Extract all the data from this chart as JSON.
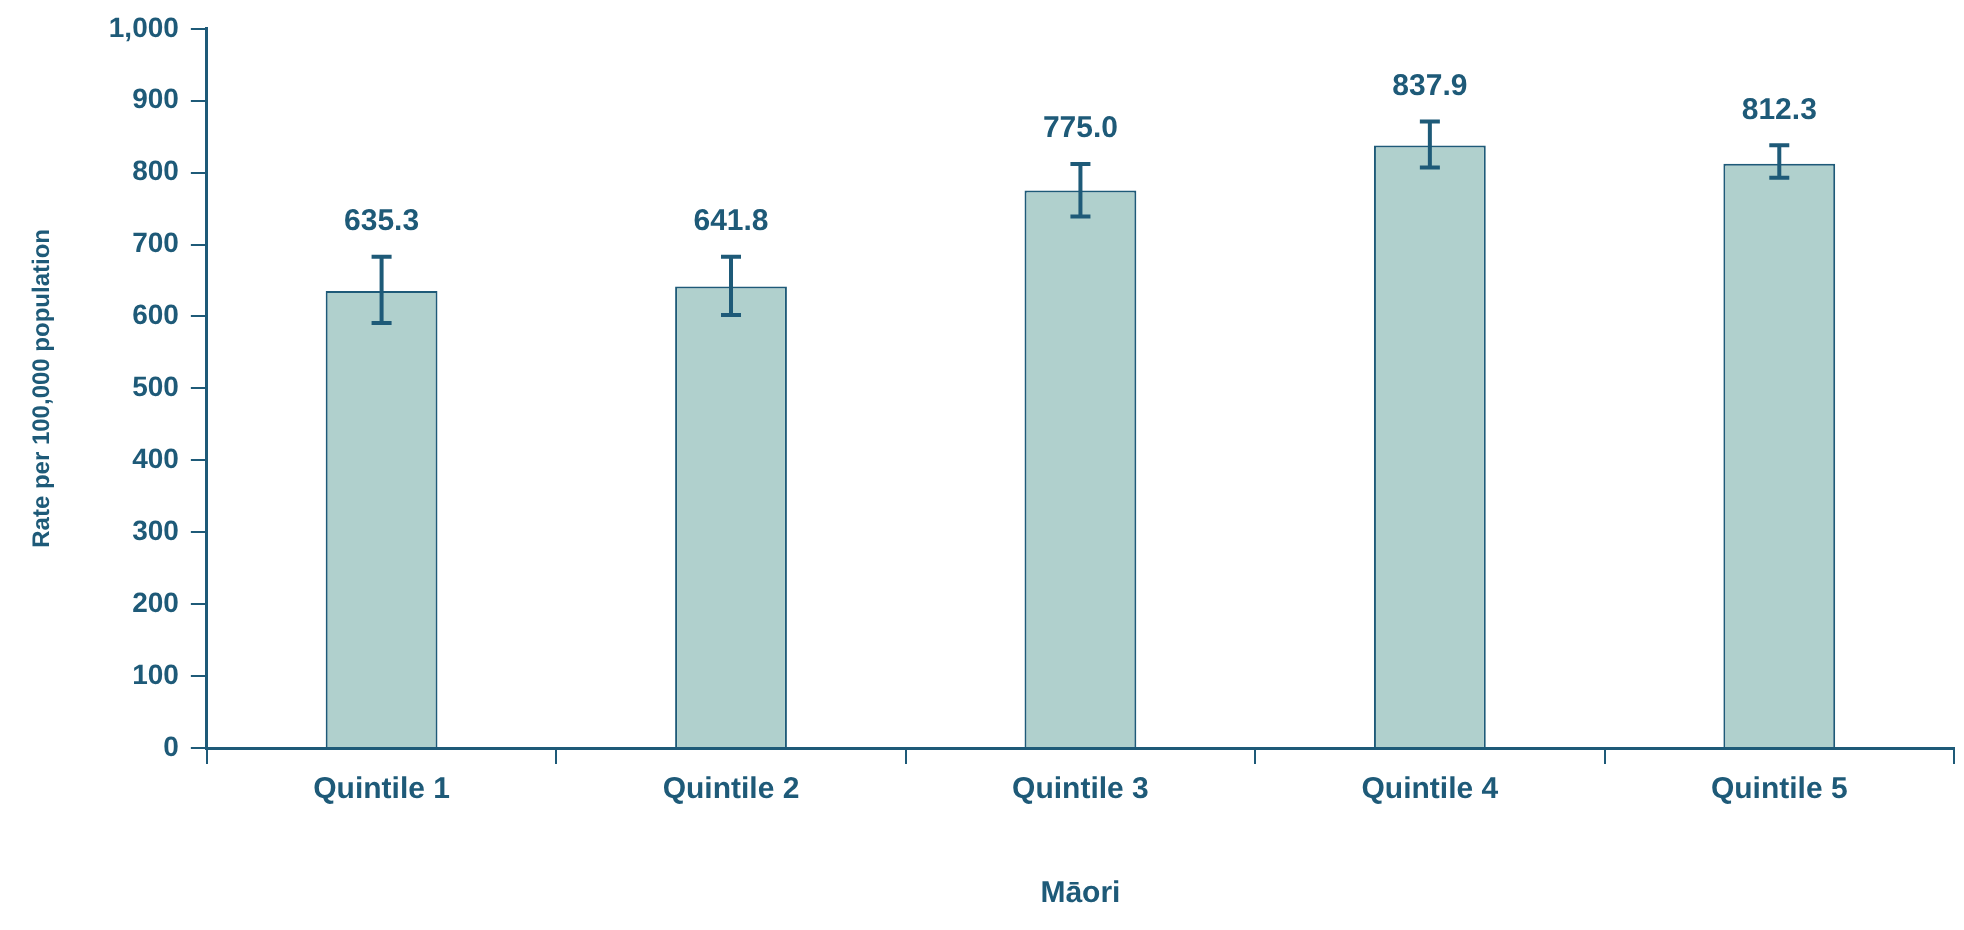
{
  "chart_data": {
    "type": "bar",
    "xlabel": "Māori",
    "ylabel": "Rate per 100,000 population",
    "categories": [
      "Quintile 1",
      "Quintile 2",
      "Quintile 3",
      "Quintile 4",
      "Quintile 5"
    ],
    "values": [
      635.3,
      641.8,
      775.0,
      837.9,
      812.3
    ],
    "errors": [
      [
        591,
        683
      ],
      [
        602,
        683
      ],
      [
        739,
        812
      ],
      [
        807,
        871
      ],
      [
        793,
        838
      ]
    ],
    "value_labels": [
      "635.3",
      "641.8",
      "775.0",
      "837.9",
      "812.3"
    ],
    "color": "#b0d0cd",
    "grid": false,
    "legend": false,
    "ylim": [
      0,
      1000
    ],
    "yticks": [
      0,
      100,
      200,
      300,
      400,
      500,
      600,
      700,
      800,
      900,
      {
        "value": 1000,
        "label": "1,000"
      }
    ]
  }
}
